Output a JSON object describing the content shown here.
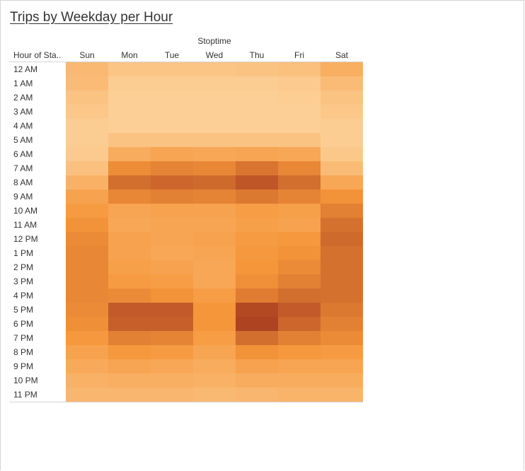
{
  "title": "Trips by Weekday per Hour",
  "chart_data": {
    "type": "heatmap",
    "title": "Trips by Weekday per Hour",
    "column_group_label": "Stoptime",
    "row_header_label": "Hour of Sta..",
    "columns": [
      "Sun",
      "Mon",
      "Tue",
      "Wed",
      "Thu",
      "Fri",
      "Sat"
    ],
    "rows": [
      "12 AM",
      "1 AM",
      "2 AM",
      "3 AM",
      "4 AM",
      "5 AM",
      "6 AM",
      "7 AM",
      "8 AM",
      "9 AM",
      "10 AM",
      "11 AM",
      "12 PM",
      "1 PM",
      "2 PM",
      "3 PM",
      "4 PM",
      "5 PM",
      "6 PM",
      "7 PM",
      "8 PM",
      "9 PM",
      "10 PM",
      "11 PM"
    ],
    "color_scale": {
      "low": "#fdd49e",
      "mid": "#f5963a",
      "high": "#a63a1f"
    },
    "intensity": [
      [
        0.22,
        0.12,
        0.12,
        0.12,
        0.14,
        0.16,
        0.3
      ],
      [
        0.2,
        0.06,
        0.06,
        0.06,
        0.06,
        0.08,
        0.2
      ],
      [
        0.14,
        0.04,
        0.04,
        0.04,
        0.04,
        0.05,
        0.14
      ],
      [
        0.1,
        0.04,
        0.04,
        0.04,
        0.04,
        0.04,
        0.1
      ],
      [
        0.06,
        0.04,
        0.04,
        0.04,
        0.04,
        0.04,
        0.06
      ],
      [
        0.06,
        0.14,
        0.14,
        0.14,
        0.14,
        0.14,
        0.06
      ],
      [
        0.08,
        0.32,
        0.38,
        0.36,
        0.38,
        0.36,
        0.1
      ],
      [
        0.16,
        0.55,
        0.6,
        0.58,
        0.68,
        0.58,
        0.2
      ],
      [
        0.28,
        0.72,
        0.76,
        0.74,
        0.85,
        0.72,
        0.36
      ],
      [
        0.4,
        0.58,
        0.62,
        0.6,
        0.66,
        0.6,
        0.52
      ],
      [
        0.46,
        0.38,
        0.4,
        0.4,
        0.44,
        0.42,
        0.62
      ],
      [
        0.52,
        0.36,
        0.38,
        0.38,
        0.42,
        0.4,
        0.7
      ],
      [
        0.56,
        0.4,
        0.38,
        0.4,
        0.46,
        0.48,
        0.74
      ],
      [
        0.58,
        0.4,
        0.36,
        0.38,
        0.48,
        0.52,
        0.7
      ],
      [
        0.58,
        0.42,
        0.4,
        0.36,
        0.5,
        0.56,
        0.7
      ],
      [
        0.58,
        0.46,
        0.44,
        0.36,
        0.54,
        0.62,
        0.7
      ],
      [
        0.58,
        0.56,
        0.52,
        0.44,
        0.64,
        0.72,
        0.7
      ],
      [
        0.56,
        0.82,
        0.82,
        0.5,
        0.92,
        0.82,
        0.66
      ],
      [
        0.54,
        0.8,
        0.8,
        0.5,
        0.95,
        0.76,
        0.62
      ],
      [
        0.48,
        0.62,
        0.6,
        0.44,
        0.72,
        0.62,
        0.56
      ],
      [
        0.4,
        0.48,
        0.46,
        0.38,
        0.52,
        0.48,
        0.46
      ],
      [
        0.34,
        0.38,
        0.36,
        0.32,
        0.4,
        0.38,
        0.38
      ],
      [
        0.28,
        0.3,
        0.3,
        0.28,
        0.32,
        0.32,
        0.32
      ],
      [
        0.24,
        0.24,
        0.24,
        0.22,
        0.24,
        0.26,
        0.26
      ]
    ]
  }
}
